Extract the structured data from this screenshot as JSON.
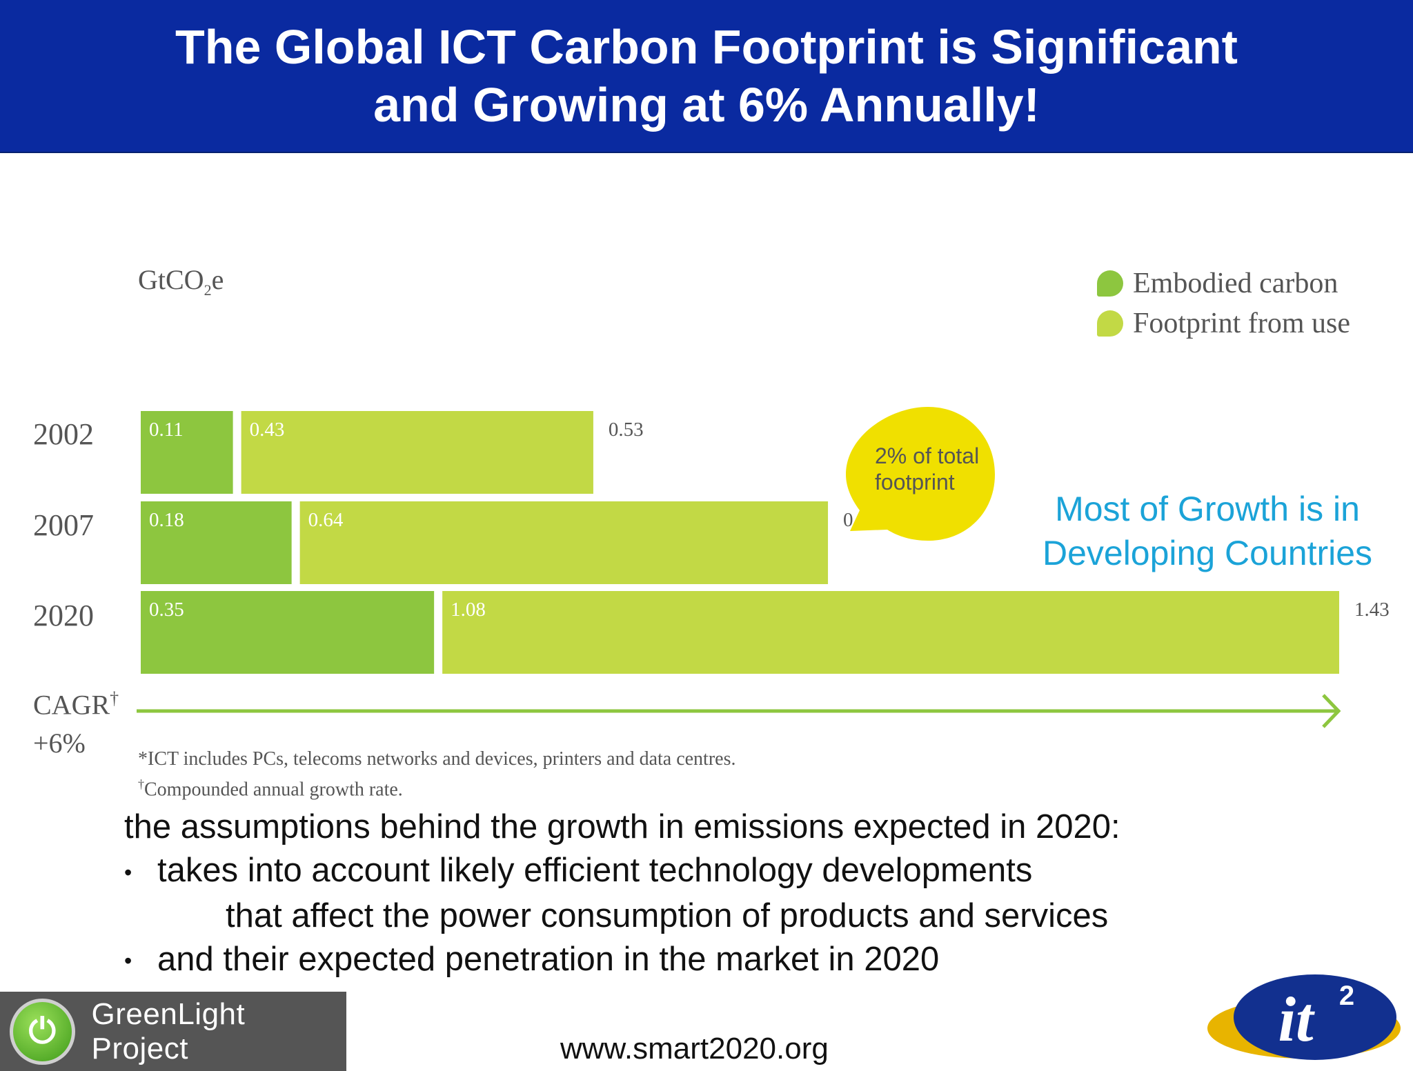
{
  "title": {
    "line1": "The Global ICT Carbon Footprint is Significant",
    "line2": "and Growing at 6% Annually!"
  },
  "chart_data": {
    "type": "bar",
    "orientation": "horizontal",
    "stacked": true,
    "unit": "GtCO",
    "unit_sub": "2",
    "unit_suffix": "e",
    "categories": [
      "2002",
      "2007",
      "2020"
    ],
    "series": [
      {
        "name": "Embodied carbon",
        "values": [
          0.11,
          0.18,
          0.35
        ],
        "color": "#8dc63f"
      },
      {
        "name": "Footprint from use",
        "values": [
          0.43,
          0.64,
          1.08
        ],
        "color": "#c2d945"
      }
    ],
    "segment_labels": [
      [
        "0.11",
        "0.43"
      ],
      [
        "0.18",
        "0.64"
      ],
      [
        "0.35",
        "1.08"
      ]
    ],
    "totals": [
      "0.53",
      "0.83",
      "1.43"
    ],
    "legend_position": "top-right",
    "grid": false,
    "cagr": {
      "label": "CAGR",
      "mark": "†",
      "value": "+6%"
    },
    "annotation": {
      "line1": "2% of total",
      "line2": "footprint",
      "color": "#f0e000"
    },
    "footnotes": [
      "*ICT includes PCs, telecoms networks and devices, printers and data centres.",
      "Compounded annual growth rate."
    ],
    "footnote_mark": "†"
  },
  "callout": {
    "line1": "Most of Growth is in",
    "line2": "Developing Countries",
    "color": "#1ba3d8"
  },
  "body": {
    "intro": "the assumptions behind the growth in emissions expected in 2020:",
    "bullet_glyph": "•",
    "bullet1": "takes into account likely efficient technology developments",
    "bullet1_cont": "that affect the power consumption of products and services",
    "bullet2": "and their expected penetration in the market in 2020"
  },
  "footer": {
    "logo_text": "GreenLight Project",
    "logo_icon": "power-icon",
    "url": "www.smart2020.org",
    "it2_logo_text": "it",
    "it2_logo_sup": "2"
  },
  "colors": {
    "title_bar": "#0a2aa0",
    "arrow": "#8dc63f"
  }
}
